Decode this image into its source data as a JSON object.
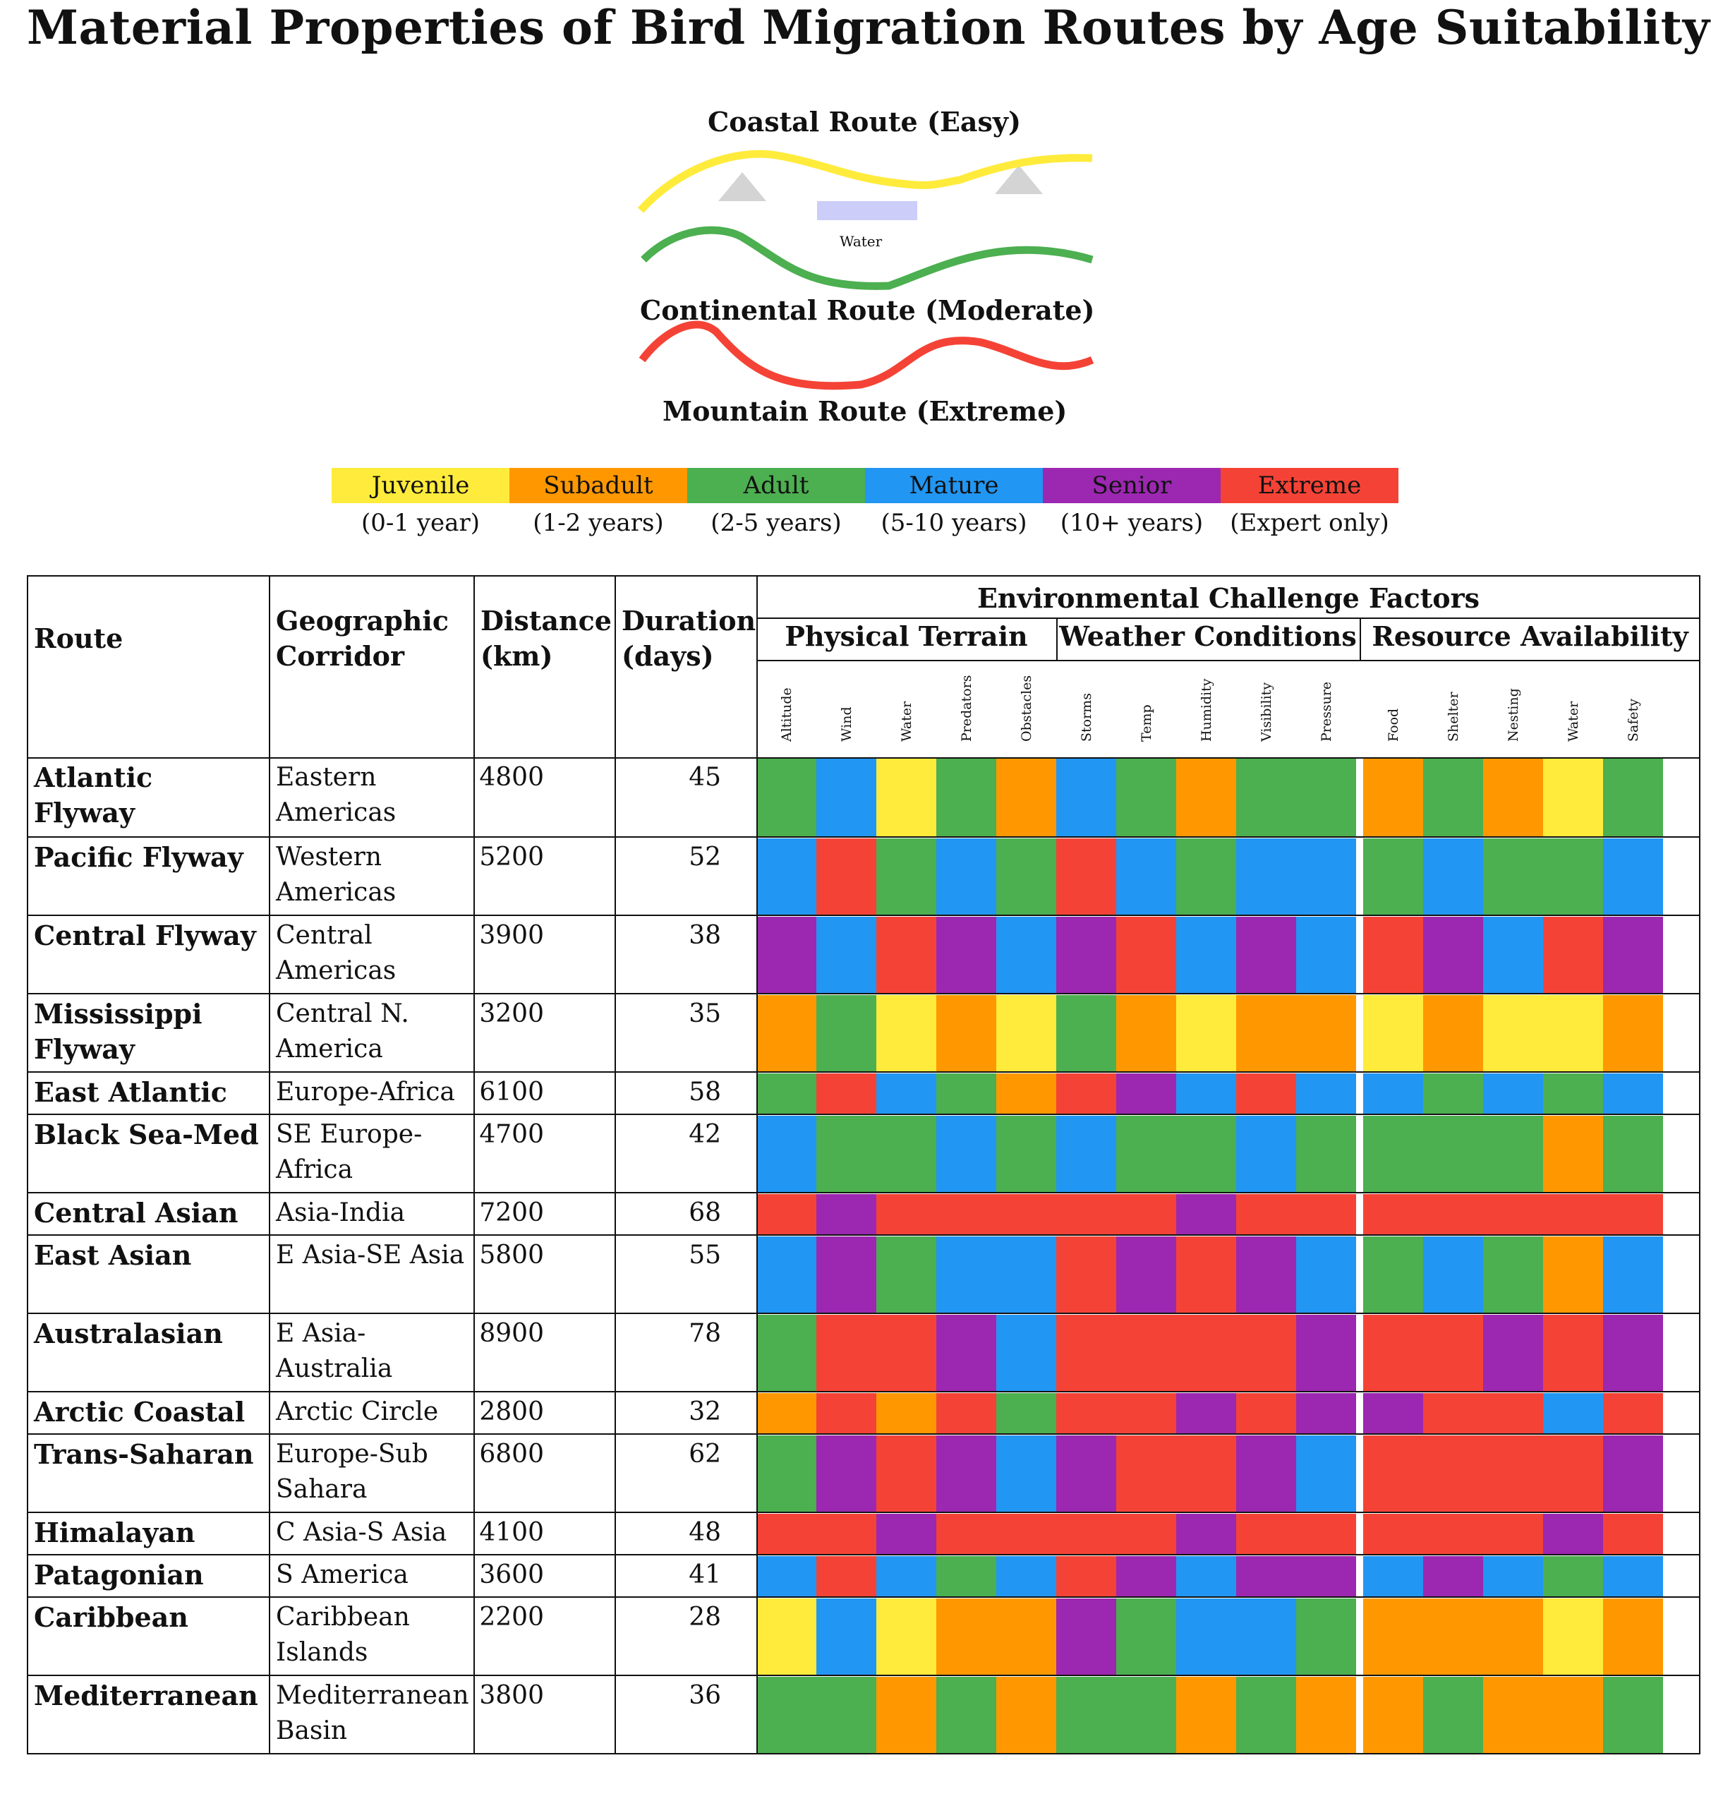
{
  "title": "Material Properties of Bird Migration Routes by Age Suitability",
  "diagram": {
    "routes": [
      {
        "label": "Coastal Route (Easy)",
        "color": "#FFEB3B"
      },
      {
        "label": "Continental Route (Moderate)",
        "color": "#4CAF50"
      },
      {
        "label": "Mountain Route (Extreme)",
        "color": "#F44336"
      }
    ],
    "water_label": "Water"
  },
  "legend": [
    {
      "name": "Juvenile",
      "range": "(0-1 year)",
      "color": "#FFEB3B"
    },
    {
      "name": "Subadult",
      "range": "(1-2 years)",
      "color": "#FF9800"
    },
    {
      "name": "Adult",
      "range": "(2-5 years)",
      "color": "#4CAF50"
    },
    {
      "name": "Mature",
      "range": "(5-10 years)",
      "color": "#2196F3"
    },
    {
      "name": "Senior",
      "range": "(10+ years)",
      "color": "#9C27B0"
    },
    {
      "name": "Extreme",
      "range": "(Expert only)",
      "color": "#F44336"
    }
  ],
  "table": {
    "headers": {
      "route": "Route",
      "corridor": "Geographic Corridor",
      "distance": "Distance (km)",
      "duration": "Duration (days)",
      "env": "Environmental Challenge Factors",
      "groups": [
        "Physical Terrain",
        "Weather Conditions",
        "Resource Availability"
      ],
      "factors": [
        "Altitude",
        "Wind",
        "Water",
        "Predators",
        "Obstacles",
        "Storms",
        "Temp",
        "Humidity",
        "Visibility",
        "Pressure",
        "Food",
        "Shelter",
        "Nesting",
        "Water",
        "Safety"
      ]
    },
    "rows": [
      {
        "route": "Atlantic Flyway",
        "corridor": "Eastern Americas",
        "distance": "4800",
        "duration": "45",
        "levels": [
          "Adult",
          "Mature",
          "Juvenile",
          "Adult",
          "Subadult",
          "Mature",
          "Adult",
          "Subadult",
          "Adult",
          "Adult",
          "Subadult",
          "Adult",
          "Subadult",
          "Juvenile",
          "Adult"
        ]
      },
      {
        "route": "Pacific Flyway",
        "corridor": "Western Americas",
        "distance": "5200",
        "duration": "52",
        "levels": [
          "Mature",
          "Extreme",
          "Adult",
          "Mature",
          "Adult",
          "Extreme",
          "Mature",
          "Adult",
          "Mature",
          "Mature",
          "Adult",
          "Mature",
          "Adult",
          "Adult",
          "Mature"
        ]
      },
      {
        "route": "Central Flyway",
        "corridor": "Central Americas",
        "distance": "3900",
        "duration": "38",
        "levels": [
          "Senior",
          "Mature",
          "Extreme",
          "Senior",
          "Mature",
          "Senior",
          "Extreme",
          "Mature",
          "Senior",
          "Mature",
          "Extreme",
          "Senior",
          "Mature",
          "Extreme",
          "Senior"
        ]
      },
      {
        "route": "Mississippi Flyway",
        "corridor": "Central N. America",
        "distance": "3200",
        "duration": "35",
        "levels": [
          "Subadult",
          "Adult",
          "Juvenile",
          "Subadult",
          "Juvenile",
          "Adult",
          "Subadult",
          "Juvenile",
          "Subadult",
          "Subadult",
          "Juvenile",
          "Subadult",
          "Juvenile",
          "Juvenile",
          "Subadult"
        ]
      },
      {
        "route": "East Atlantic",
        "corridor": "Europe-Africa",
        "distance": "6100",
        "duration": "58",
        "levels": [
          "Adult",
          "Extreme",
          "Mature",
          "Adult",
          "Subadult",
          "Extreme",
          "Senior",
          "Mature",
          "Extreme",
          "Mature",
          "Mature",
          "Adult",
          "Mature",
          "Adult",
          "Mature"
        ]
      },
      {
        "route": "Black Sea-Med",
        "corridor": "SE Europe-Africa",
        "distance": "4700",
        "duration": "42",
        "levels": [
          "Mature",
          "Adult",
          "Adult",
          "Mature",
          "Adult",
          "Mature",
          "Adult",
          "Adult",
          "Mature",
          "Adult",
          "Adult",
          "Adult",
          "Adult",
          "Subadult",
          "Adult"
        ]
      },
      {
        "route": "Central Asian",
        "corridor": "Asia-India",
        "distance": "7200",
        "duration": "68",
        "levels": [
          "Extreme",
          "Senior",
          "Extreme",
          "Extreme",
          "Extreme",
          "Extreme",
          "Extreme",
          "Senior",
          "Extreme",
          "Extreme",
          "Extreme",
          "Extreme",
          "Extreme",
          "Extreme",
          "Extreme"
        ]
      },
      {
        "route": "East Asian",
        "corridor": "E Asia-SE Asia",
        "distance": "5800",
        "duration": "55",
        "levels": [
          "Mature",
          "Senior",
          "Adult",
          "Mature",
          "Mature",
          "Extreme",
          "Senior",
          "Extreme",
          "Senior",
          "Mature",
          "Adult",
          "Mature",
          "Adult",
          "Subadult",
          "Mature"
        ]
      },
      {
        "route": "Australasian",
        "corridor": "E Asia-Australia",
        "distance": "8900",
        "duration": "78",
        "levels": [
          "Adult",
          "Extreme",
          "Extreme",
          "Senior",
          "Mature",
          "Extreme",
          "Extreme",
          "Extreme",
          "Extreme",
          "Senior",
          "Extreme",
          "Extreme",
          "Senior",
          "Extreme",
          "Senior"
        ]
      },
      {
        "route": "Arctic Coastal",
        "corridor": "Arctic Circle",
        "distance": "2800",
        "duration": "32",
        "levels": [
          "Subadult",
          "Extreme",
          "Subadult",
          "Extreme",
          "Adult",
          "Extreme",
          "Extreme",
          "Senior",
          "Extreme",
          "Senior",
          "Senior",
          "Extreme",
          "Extreme",
          "Mature",
          "Extreme"
        ]
      },
      {
        "route": "Trans-Saharan",
        "corridor": "Europe-Sub Sahara",
        "distance": "6800",
        "duration": "62",
        "levels": [
          "Adult",
          "Senior",
          "Extreme",
          "Senior",
          "Mature",
          "Senior",
          "Extreme",
          "Extreme",
          "Senior",
          "Mature",
          "Extreme",
          "Extreme",
          "Extreme",
          "Extreme",
          "Senior"
        ]
      },
      {
        "route": "Himalayan",
        "corridor": "C Asia-S Asia",
        "distance": "4100",
        "duration": "48",
        "levels": [
          "Extreme",
          "Extreme",
          "Senior",
          "Extreme",
          "Extreme",
          "Extreme",
          "Extreme",
          "Senior",
          "Extreme",
          "Extreme",
          "Extreme",
          "Extreme",
          "Extreme",
          "Senior",
          "Extreme"
        ]
      },
      {
        "route": "Patagonian",
        "corridor": "S America",
        "distance": "3600",
        "duration": "41",
        "levels": [
          "Mature",
          "Extreme",
          "Mature",
          "Adult",
          "Mature",
          "Extreme",
          "Senior",
          "Mature",
          "Senior",
          "Senior",
          "Mature",
          "Senior",
          "Mature",
          "Adult",
          "Mature"
        ]
      },
      {
        "route": "Caribbean",
        "corridor": "Caribbean Islands",
        "distance": "2200",
        "duration": "28",
        "levels": [
          "Juvenile",
          "Mature",
          "Juvenile",
          "Subadult",
          "Subadult",
          "Senior",
          "Adult",
          "Mature",
          "Mature",
          "Adult",
          "Subadult",
          "Subadult",
          "Subadult",
          "Juvenile",
          "Subadult"
        ]
      },
      {
        "route": "Mediterranean",
        "corridor": "Mediterranean Basin",
        "distance": "3800",
        "duration": "36",
        "levels": [
          "Adult",
          "Adult",
          "Subadult",
          "Adult",
          "Subadult",
          "Adult",
          "Adult",
          "Subadult",
          "Adult",
          "Subadult",
          "Subadult",
          "Adult",
          "Subadult",
          "Subadult",
          "Adult"
        ]
      }
    ]
  }
}
